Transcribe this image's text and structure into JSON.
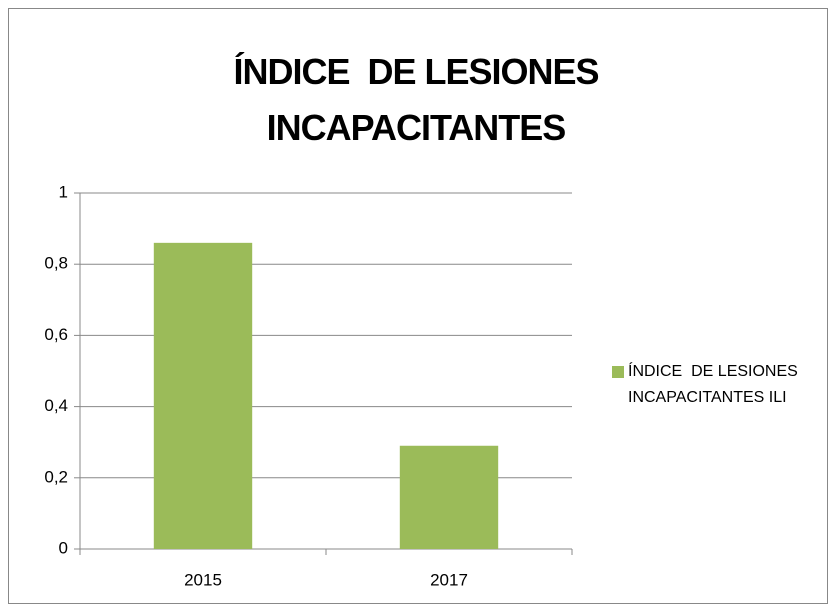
{
  "chart_data": {
    "type": "bar",
    "title": "ÍNDICE  DE LESIONES INCAPACITANTES",
    "categories": [
      "2015",
      "2017"
    ],
    "series": [
      {
        "name": "ÍNDICE  DE LESIONES INCAPACITANTES ILI",
        "color": "#9bbb59",
        "values": [
          0.86,
          0.29
        ]
      }
    ],
    "ylim": [
      0,
      1
    ],
    "yticks": [
      0,
      {
        "value": 0.2,
        "label": "0,2"
      },
      {
        "value": 0.4,
        "label": "0,4"
      },
      {
        "value": 0.6,
        "label": "0,6"
      },
      {
        "value": 0.8,
        "label": "0,8"
      },
      1
    ],
    "grid": true,
    "legend": "right"
  }
}
